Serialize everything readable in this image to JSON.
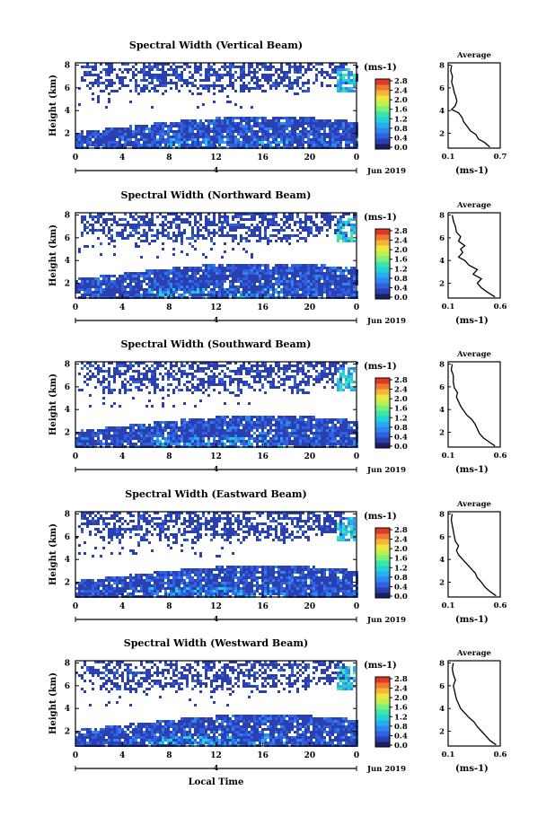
{
  "colors": {
    "colorbar": [
      "#1e1e64",
      "#2a3fb0",
      "#3060e0",
      "#2f86f0",
      "#27aef0",
      "#23d2d8",
      "#3ce6a8",
      "#7cf07a",
      "#c0f050",
      "#f0e640",
      "#f8b438",
      "#f07830",
      "#e03a26"
    ],
    "low": "#3552cf",
    "frame": "#000000"
  },
  "chart_data": [
    {
      "type": "heatmap",
      "title": "Spectral Width (Vertical Beam)",
      "ylabel": "Height (km)",
      "y_ticks": [
        "2",
        "4",
        "6",
        "8"
      ],
      "x_ticks": [
        "0",
        "4",
        "8",
        "12",
        "16",
        "20",
        "0"
      ],
      "xlim": [
        0,
        24
      ],
      "ylim": [
        0.7,
        8.2
      ],
      "date_ticks": [
        "4"
      ],
      "date_label": "Jun 2019",
      "colorbar": {
        "unit": "(ms-1)",
        "ticks": [
          "0.0",
          "0.4",
          "0.8",
          "1.2",
          "1.6",
          "2.0",
          "2.4",
          "2.8"
        ]
      },
      "average": {
        "title": "Average",
        "xlabel": "(ms-1)",
        "x_ticks": [
          "0.1",
          "0.7"
        ],
        "y_ticks": [
          "2",
          "4",
          "6",
          "8"
        ],
        "xlim": [
          0.1,
          0.7
        ],
        "ylim": [
          0.7,
          8.2
        ],
        "profile": [
          [
            0.58,
            0.8
          ],
          [
            0.52,
            1.2
          ],
          [
            0.45,
            1.5
          ],
          [
            0.42,
            1.9
          ],
          [
            0.36,
            2.2
          ],
          [
            0.32,
            2.6
          ],
          [
            0.28,
            3.0
          ],
          [
            0.26,
            3.4
          ],
          [
            0.22,
            3.8
          ],
          [
            0.14,
            4.1
          ],
          [
            0.18,
            4.4
          ],
          [
            0.2,
            4.8
          ],
          [
            0.19,
            5.2
          ],
          [
            0.17,
            5.6
          ],
          [
            0.16,
            6.0
          ],
          [
            0.14,
            6.5
          ],
          [
            0.15,
            7.0
          ],
          [
            0.13,
            7.5
          ],
          [
            0.14,
            8.0
          ]
        ]
      }
    },
    {
      "type": "heatmap",
      "title": "Spectral Width (Northward Beam)",
      "ylabel": "Height (km)",
      "y_ticks": [
        "2",
        "4",
        "6",
        "8"
      ],
      "x_ticks": [
        "0",
        "4",
        "8",
        "12",
        "16",
        "20",
        "0"
      ],
      "xlim": [
        0,
        24
      ],
      "ylim": [
        0.7,
        8.2
      ],
      "date_ticks": [
        "4"
      ],
      "date_label": "Jun 2019",
      "colorbar": {
        "unit": "(ms-1)",
        "ticks": [
          "0.0",
          "0.4",
          "0.8",
          "1.2",
          "1.6",
          "2.0",
          "2.4",
          "2.8"
        ]
      },
      "average": {
        "title": "Average",
        "xlabel": "(ms-1)",
        "x_ticks": [
          "0.1",
          "0.6"
        ],
        "y_ticks": [
          "2",
          "4",
          "6",
          "8"
        ],
        "xlim": [
          0.1,
          0.6
        ],
        "ylim": [
          0.7,
          8.2
        ],
        "profile": [
          [
            0.55,
            0.8
          ],
          [
            0.48,
            1.2
          ],
          [
            0.42,
            1.6
          ],
          [
            0.38,
            2.0
          ],
          [
            0.42,
            2.4
          ],
          [
            0.34,
            2.8
          ],
          [
            0.38,
            3.2
          ],
          [
            0.3,
            3.6
          ],
          [
            0.26,
            4.0
          ],
          [
            0.2,
            4.3
          ],
          [
            0.24,
            4.7
          ],
          [
            0.22,
            5.0
          ],
          [
            0.26,
            5.3
          ],
          [
            0.2,
            5.7
          ],
          [
            0.22,
            6.1
          ],
          [
            0.18,
            6.5
          ],
          [
            0.17,
            7.0
          ],
          [
            0.15,
            7.5
          ],
          [
            0.14,
            8.0
          ]
        ]
      }
    },
    {
      "type": "heatmap",
      "title": "Spectral Width (Southward Beam)",
      "ylabel": "Height (km)",
      "y_ticks": [
        "2",
        "4",
        "6",
        "8"
      ],
      "x_ticks": [
        "0",
        "4",
        "8",
        "12",
        "16",
        "20",
        "0"
      ],
      "xlim": [
        0,
        24
      ],
      "ylim": [
        0.7,
        8.2
      ],
      "date_ticks": [
        "4"
      ],
      "date_label": "Jun 2019",
      "colorbar": {
        "unit": "(ms-1)",
        "ticks": [
          "0.0",
          "0.4",
          "0.8",
          "1.2",
          "1.6",
          "2.0",
          "2.4",
          "2.8"
        ]
      },
      "average": {
        "title": "Average",
        "xlabel": "(ms-1)",
        "x_ticks": [
          "0.1",
          "0.6"
        ],
        "y_ticks": [
          "2",
          "4",
          "6",
          "8"
        ],
        "xlim": [
          0.1,
          0.6
        ],
        "ylim": [
          0.7,
          8.2
        ],
        "profile": [
          [
            0.55,
            0.8
          ],
          [
            0.5,
            1.1
          ],
          [
            0.44,
            1.5
          ],
          [
            0.4,
            1.9
          ],
          [
            0.38,
            2.3
          ],
          [
            0.36,
            2.7
          ],
          [
            0.33,
            3.1
          ],
          [
            0.28,
            3.5
          ],
          [
            0.25,
            3.9
          ],
          [
            0.22,
            4.3
          ],
          [
            0.2,
            4.7
          ],
          [
            0.18,
            5.1
          ],
          [
            0.19,
            5.5
          ],
          [
            0.16,
            5.9
          ],
          [
            0.15,
            6.4
          ],
          [
            0.15,
            7.0
          ],
          [
            0.13,
            7.5
          ],
          [
            0.14,
            8.0
          ]
        ]
      }
    },
    {
      "type": "heatmap",
      "title": "Spectral Width (Eastward Beam)",
      "ylabel": "Height (km)",
      "y_ticks": [
        "2",
        "4",
        "6",
        "8"
      ],
      "x_ticks": [
        "0",
        "4",
        "8",
        "12",
        "16",
        "20",
        "0"
      ],
      "xlim": [
        0,
        24
      ],
      "ylim": [
        0.7,
        8.2
      ],
      "date_ticks": [
        "4"
      ],
      "date_label": "Jun 2019",
      "colorbar": {
        "unit": "(ms-1)",
        "ticks": [
          "0.0",
          "0.4",
          "0.8",
          "1.2",
          "1.6",
          "2.0",
          "2.4",
          "2.8"
        ]
      },
      "average": {
        "title": "Average",
        "xlabel": "(ms-1)",
        "x_ticks": [
          "0.1",
          "0.6"
        ],
        "y_ticks": [
          "2",
          "4",
          "6",
          "8"
        ],
        "xlim": [
          0.1,
          0.6
        ],
        "ylim": [
          0.7,
          8.2
        ],
        "profile": [
          [
            0.56,
            0.8
          ],
          [
            0.5,
            1.2
          ],
          [
            0.45,
            1.6
          ],
          [
            0.42,
            2.0
          ],
          [
            0.38,
            2.4
          ],
          [
            0.36,
            2.8
          ],
          [
            0.32,
            3.2
          ],
          [
            0.28,
            3.6
          ],
          [
            0.24,
            4.0
          ],
          [
            0.2,
            4.4
          ],
          [
            0.18,
            4.8
          ],
          [
            0.2,
            5.2
          ],
          [
            0.17,
            5.6
          ],
          [
            0.16,
            6.0
          ],
          [
            0.15,
            6.5
          ],
          [
            0.14,
            7.0
          ],
          [
            0.13,
            7.5
          ],
          [
            0.14,
            8.0
          ]
        ]
      }
    },
    {
      "type": "heatmap",
      "title": "Spectral Width (Westward Beam)",
      "ylabel": "Height (km)",
      "y_ticks": [
        "2",
        "4",
        "6",
        "8"
      ],
      "x_ticks": [
        "0",
        "4",
        "8",
        "12",
        "16",
        "20",
        "0"
      ],
      "xlim": [
        0,
        24
      ],
      "ylim": [
        0.7,
        8.2
      ],
      "date_ticks": [
        "4"
      ],
      "date_label": "Jun 2019",
      "xlabel": "Local Time",
      "colorbar": {
        "unit": "(ms-1)",
        "ticks": [
          "0.0",
          "0.4",
          "0.8",
          "1.2",
          "1.6",
          "2.0",
          "2.4",
          "2.8"
        ]
      },
      "average": {
        "title": "Average",
        "xlabel": "(ms-1)",
        "x_ticks": [
          "0.1",
          "0.6"
        ],
        "y_ticks": [
          "2",
          "4",
          "6",
          "8"
        ],
        "xlim": [
          0.1,
          0.6
        ],
        "ylim": [
          0.7,
          8.2
        ],
        "profile": [
          [
            0.56,
            0.8
          ],
          [
            0.5,
            1.2
          ],
          [
            0.46,
            1.6
          ],
          [
            0.42,
            2.0
          ],
          [
            0.38,
            2.4
          ],
          [
            0.35,
            2.8
          ],
          [
            0.3,
            3.2
          ],
          [
            0.26,
            3.6
          ],
          [
            0.22,
            4.0
          ],
          [
            0.2,
            4.4
          ],
          [
            0.18,
            4.8
          ],
          [
            0.17,
            5.2
          ],
          [
            0.16,
            5.6
          ],
          [
            0.15,
            6.0
          ],
          [
            0.17,
            6.5
          ],
          [
            0.15,
            7.0
          ],
          [
            0.14,
            7.5
          ],
          [
            0.15,
            8.0
          ]
        ]
      }
    }
  ]
}
